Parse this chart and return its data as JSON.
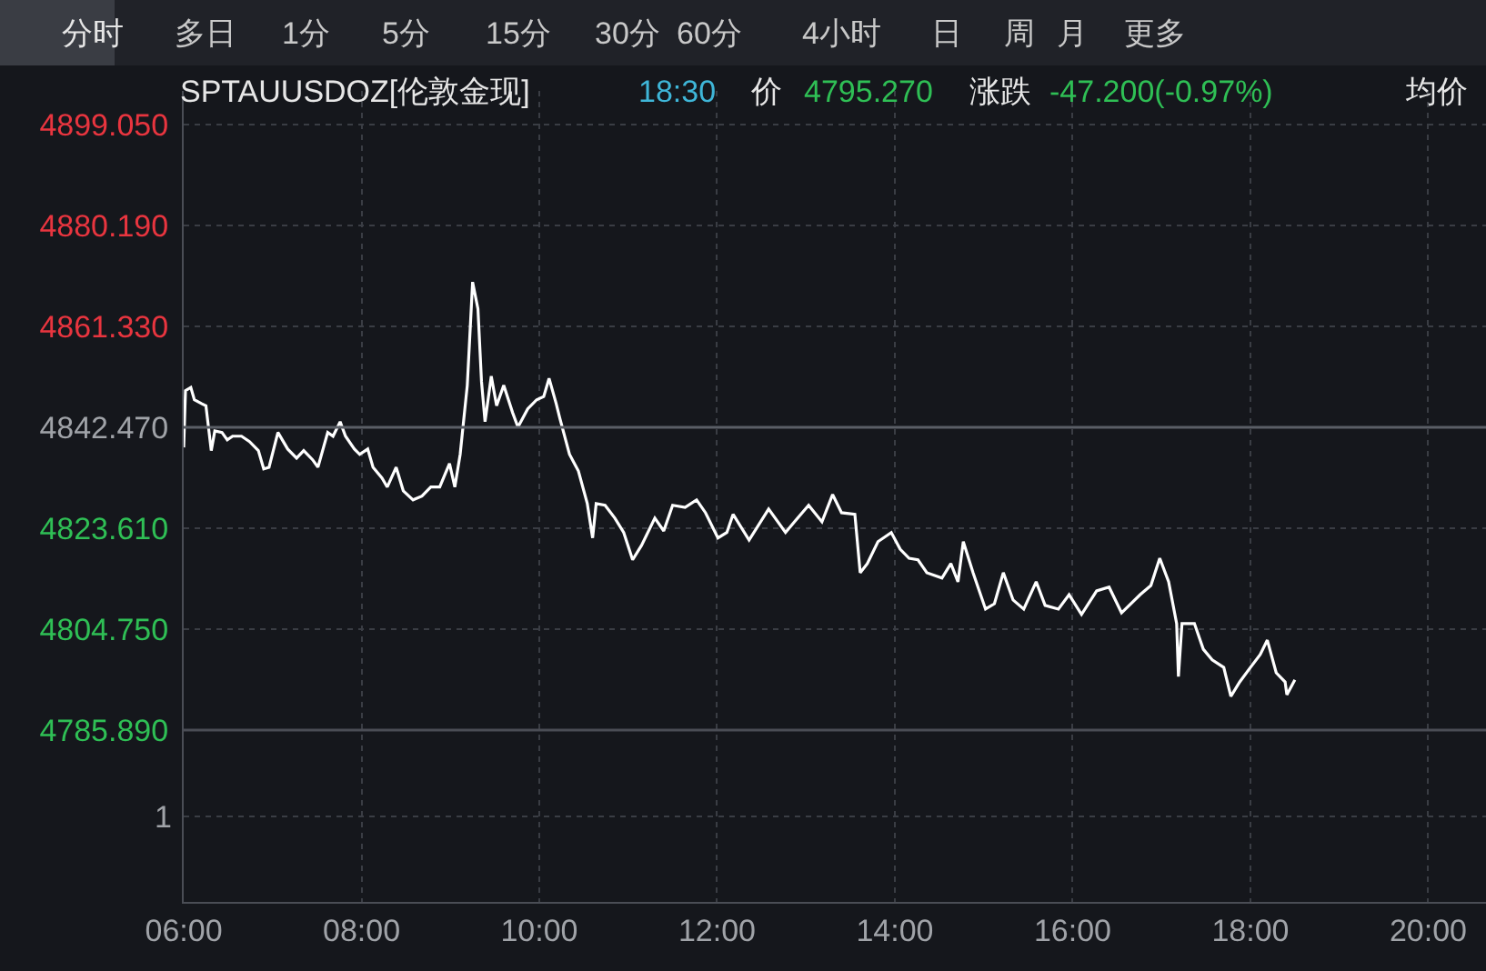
{
  "chart_data": {
    "type": "line",
    "title": "SPTAUUSDOZ[伦敦金现]",
    "annotations": [
      "分时",
      "多日",
      "1分",
      "5分",
      "15分",
      "30分",
      "60分",
      "4小时",
      "日",
      "周",
      "月",
      "更多",
      "18:30",
      "价",
      "4795.270",
      "涨跌",
      "-47.200(-0.97%)",
      "均价",
      "1"
    ],
    "x": [
      6.0,
      6.02,
      6.08,
      6.12,
      6.2,
      6.25,
      6.31,
      6.35,
      6.43,
      6.49,
      6.55,
      6.65,
      6.74,
      6.84,
      6.9,
      6.96,
      7.06,
      7.17,
      7.27,
      7.35,
      7.45,
      7.51,
      7.62,
      7.68,
      7.76,
      7.82,
      7.92,
      7.98,
      8.07,
      8.13,
      8.23,
      8.29,
      8.39,
      8.47,
      8.58,
      8.68,
      8.78,
      8.88,
      8.99,
      9.05,
      9.11,
      9.19,
      9.25,
      9.31,
      9.35,
      9.39,
      9.46,
      9.52,
      9.6,
      9.7,
      9.76,
      9.87,
      9.97,
      10.05,
      10.11,
      10.19,
      10.23,
      10.34,
      10.44,
      10.54,
      10.6,
      10.64,
      10.74,
      10.85,
      10.95,
      11.05,
      11.15,
      11.3,
      11.4,
      11.5,
      11.64,
      11.77,
      11.87,
      12.01,
      12.11,
      12.18,
      12.36,
      12.58,
      12.77,
      12.87,
      13.03,
      13.18,
      13.3,
      13.4,
      13.55,
      13.61,
      13.69,
      13.81,
      13.96,
      14.06,
      14.16,
      14.26,
      14.36,
      14.53,
      14.63,
      14.71,
      14.77,
      14.88,
      15.02,
      15.12,
      15.22,
      15.33,
      15.45,
      15.59,
      15.69,
      15.84,
      15.96,
      16.1,
      16.27,
      16.41,
      16.55,
      16.76,
      16.88,
      16.98,
      17.08,
      17.17,
      17.19,
      17.23,
      17.37,
      17.47,
      17.57,
      17.7,
      17.78,
      17.88,
      18.0,
      18.11,
      18.19,
      18.29,
      18.39,
      18.41,
      18.5
    ],
    "series": [
      {
        "color": "#ffffff",
        "values": [
          4838.7,
          4849.3,
          4849.9,
          4847.6,
          4846.9,
          4846.5,
          4838.1,
          4841.8,
          4841.5,
          4840.1,
          4840.8,
          4840.8,
          4839.8,
          4838.1,
          4834.7,
          4835.0,
          4841.5,
          4838.4,
          4836.7,
          4838.1,
          4836.4,
          4835.0,
          4841.5,
          4840.8,
          4843.5,
          4840.8,
          4838.4,
          4837.4,
          4838.4,
          4835.0,
          4833.0,
          4831.3,
          4835.0,
          4830.6,
          4828.9,
          4829.6,
          4831.3,
          4831.3,
          4835.7,
          4831.3,
          4837.4,
          4850.3,
          4869.6,
          4864.6,
          4851.0,
          4843.5,
          4852.0,
          4846.5,
          4850.3,
          4845.2,
          4842.5,
          4845.9,
          4847.6,
          4848.2,
          4851.6,
          4846.9,
          4844.2,
          4837.4,
          4834.3,
          4828.2,
          4821.8,
          4828.2,
          4827.9,
          4825.5,
          4822.8,
          4817.7,
          4820.4,
          4825.5,
          4823.1,
          4827.9,
          4827.5,
          4828.9,
          4826.5,
          4821.8,
          4822.8,
          4826.2,
          4821.4,
          4827.2,
          4822.8,
          4824.8,
          4827.9,
          4824.8,
          4829.9,
          4826.5,
          4826.2,
          4815.3,
          4817.0,
          4821.1,
          4822.8,
          4819.7,
          4818.0,
          4817.7,
          4815.3,
          4814.3,
          4817.0,
          4813.6,
          4821.1,
          4815.3,
          4808.5,
          4809.5,
          4815.3,
          4810.2,
          4808.5,
          4813.6,
          4809.2,
          4808.5,
          4811.2,
          4807.5,
          4811.9,
          4812.6,
          4807.8,
          4811.2,
          4812.9,
          4818.0,
          4813.6,
          4805.8,
          4795.9,
          4805.8,
          4805.8,
          4801.0,
          4799.0,
          4797.6,
          4792.2,
          4794.9,
          4797.6,
          4800.0,
          4802.7,
          4796.6,
          4794.9,
          4792.5,
          4795.3
        ]
      }
    ],
    "xlim": [
      6,
      20.65
    ],
    "xticks": [
      {
        "value": 6,
        "label": "06:00"
      },
      {
        "value": 8,
        "label": "08:00"
      },
      {
        "value": 10,
        "label": "10:00"
      },
      {
        "value": 12,
        "label": "12:00"
      },
      {
        "value": 14,
        "label": "14:00"
      },
      {
        "value": 16,
        "label": "16:00"
      },
      {
        "value": 18,
        "label": "18:00"
      },
      {
        "value": 20,
        "label": "20:00"
      }
    ],
    "ylim": [
      4753.8,
      4905.3
    ],
    "yticks": [
      {
        "value": 4785.89,
        "label": "4785.890"
      },
      {
        "value": 4804.75,
        "label": "4804.750"
      },
      {
        "value": 4823.61,
        "label": "4823.610"
      },
      {
        "value": 4842.47,
        "label": "4842.470"
      },
      {
        "value": 4861.33,
        "label": "4861.330"
      },
      {
        "value": 4880.19,
        "label": "4880.190"
      },
      {
        "value": 4899.05,
        "label": "4899.050"
      }
    ],
    "ref_lines": [
      {
        "axis": "y",
        "value": 4842.47,
        "color": "#5a5e66",
        "line_style": "solid"
      },
      {
        "axis": "y",
        "value": 4785.89,
        "color": "#4a4d55",
        "line_style": "solid"
      }
    ],
    "grid": true,
    "line_style": "solid",
    "marker": "none"
  }
}
